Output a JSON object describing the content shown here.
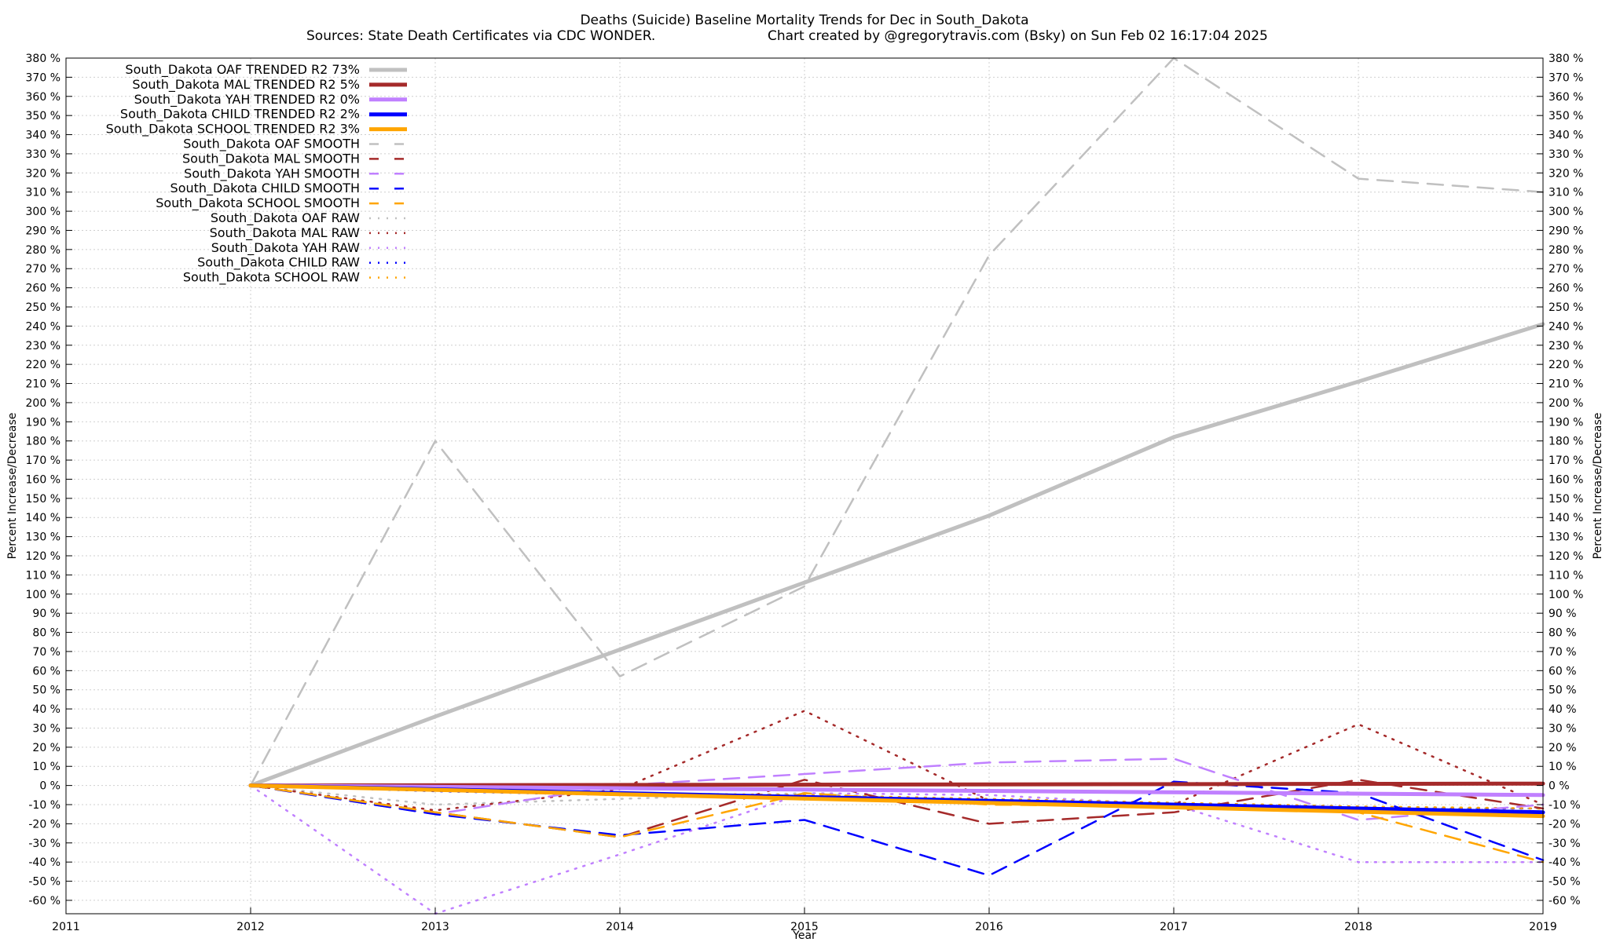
{
  "chart_data": {
    "type": "line",
    "title": "Deaths (Suicide)  Baseline Mortality Trends for Dec in South_Dakota",
    "subtitle_left": "Sources: State Death Certificates via CDC WONDER.",
    "subtitle_right": "Chart created by @gregorytravis.com (Bsky) on Sun Feb 02 16:17:04 2025",
    "xlabel": "Year",
    "ylabel": "Percent Increase/Decrease",
    "y2label": "Percent Increase/Decrease",
    "xlim": [
      2011,
      2019
    ],
    "ylim": [
      -67,
      380
    ],
    "x_ticks": [
      "2011",
      "2012",
      "2013",
      "2014",
      "2015",
      "2016",
      "2017",
      "2018",
      "2019"
    ],
    "y_ticks": [
      "380 %",
      "370 %",
      "360 %",
      "350 %",
      "340 %",
      "330 %",
      "320 %",
      "310 %",
      "300 %",
      "290 %",
      "280 %",
      "270 %",
      "260 %",
      "250 %",
      "240 %",
      "230 %",
      "220 %",
      "210 %",
      "200 %",
      "190 %",
      "180 %",
      "170 %",
      "160 %",
      "150 %",
      "140 %",
      "130 %",
      "120 %",
      "110 %",
      "100 %",
      "90 %",
      "80 %",
      "70 %",
      "60 %",
      "50 %",
      "40 %",
      "30 %",
      "20 %",
      "10 %",
      "0 %",
      "-10 %",
      "-20 %",
      "-30 %",
      "-40 %",
      "-50 %",
      "-60 %"
    ],
    "y_tick_values": [
      380,
      370,
      360,
      350,
      340,
      330,
      320,
      310,
      300,
      290,
      280,
      270,
      260,
      250,
      240,
      230,
      220,
      210,
      200,
      190,
      180,
      170,
      160,
      150,
      140,
      130,
      120,
      110,
      100,
      90,
      80,
      70,
      60,
      50,
      40,
      30,
      20,
      10,
      0,
      -10,
      -20,
      -30,
      -40,
      -50,
      -60
    ],
    "grid": true,
    "legend_position": "top-left",
    "series": [
      {
        "name": "South_Dakota OAF TRENDED R2  73%",
        "kind": "trended",
        "color": "#c0c0c0",
        "x": [
          2012,
          2013,
          2014,
          2015,
          2016,
          2017,
          2018,
          2019
        ],
        "y": [
          0,
          36,
          71,
          106,
          141,
          182,
          211,
          241
        ]
      },
      {
        "name": "South_Dakota MAL TRENDED R2   5%",
        "kind": "trended",
        "color": "#a52a2a",
        "x": [
          2012,
          2019
        ],
        "y": [
          0,
          1
        ]
      },
      {
        "name": "South_Dakota YAH TRENDED R2   0%",
        "kind": "trended",
        "color": "#c080ff",
        "x": [
          2012,
          2019
        ],
        "y": [
          0,
          -5
        ]
      },
      {
        "name": "South_Dakota CHILD TRENDED R2   2%",
        "kind": "trended",
        "color": "#0000ff",
        "x": [
          2012,
          2019
        ],
        "y": [
          0,
          -14
        ]
      },
      {
        "name": "South_Dakota SCHOOL TRENDED R2   3%",
        "kind": "trended",
        "color": "#ffa500",
        "x": [
          2012,
          2019
        ],
        "y": [
          0,
          -16
        ]
      },
      {
        "name": "South_Dakota OAF SMOOTH",
        "kind": "smooth",
        "color": "#c0c0c0",
        "x": [
          2012,
          2013,
          2014,
          2015,
          2016,
          2017,
          2018,
          2019
        ],
        "y": [
          0,
          180,
          57,
          104,
          277,
          380,
          317,
          310
        ]
      },
      {
        "name": "South_Dakota MAL SMOOTH",
        "kind": "smooth",
        "color": "#a52a2a",
        "x": [
          2012,
          2013,
          2014,
          2015,
          2016,
          2017,
          2018,
          2019
        ],
        "y": [
          0,
          -14,
          -27,
          3,
          -20,
          -14,
          3,
          -12
        ]
      },
      {
        "name": "South_Dakota YAH SMOOTH",
        "kind": "smooth",
        "color": "#c080ff",
        "x": [
          2012,
          2013,
          2014,
          2015,
          2016,
          2017,
          2018,
          2019
        ],
        "y": [
          0,
          -15,
          0,
          6,
          12,
          14,
          -18,
          -10
        ]
      },
      {
        "name": "South_Dakota CHILD SMOOTH",
        "kind": "smooth",
        "color": "#0000ff",
        "x": [
          2012,
          2013,
          2014,
          2015,
          2016,
          2017,
          2018,
          2019
        ],
        "y": [
          0,
          -15,
          -26,
          -18,
          -47,
          2,
          -4,
          -39
        ]
      },
      {
        "name": "South_Dakota SCHOOL SMOOTH",
        "kind": "smooth",
        "color": "#ffa500",
        "x": [
          2012,
          2013,
          2014,
          2015,
          2016,
          2017,
          2018,
          2019
        ],
        "y": [
          0,
          -14,
          -27,
          -4,
          -10,
          -11,
          -14,
          -40
        ]
      },
      {
        "name": "South_Dakota OAF RAW",
        "kind": "raw",
        "color": "#c0c0c0",
        "x": [
          2012,
          2013,
          2014,
          2015,
          2016,
          2017,
          2018,
          2019
        ],
        "y": [
          0,
          -10,
          -7,
          -4,
          -9,
          -11,
          -12,
          -12
        ]
      },
      {
        "name": "South_Dakota MAL RAW",
        "kind": "raw",
        "color": "#a52a2a",
        "x": [
          2012,
          2013,
          2014,
          2015,
          2016,
          2017,
          2018,
          2019
        ],
        "y": [
          0,
          -13,
          -2,
          39,
          -8,
          -10,
          32,
          -10
        ]
      },
      {
        "name": "South_Dakota YAH RAW",
        "kind": "raw",
        "color": "#c080ff",
        "x": [
          2012,
          2013,
          2014,
          2015,
          2016,
          2017,
          2018,
          2019
        ],
        "y": [
          0,
          -67,
          -36,
          -4,
          -5,
          -10,
          -40,
          -40
        ]
      },
      {
        "name": "South_Dakota CHILD RAW",
        "kind": "raw",
        "color": "#0000ff",
        "x": [
          2012,
          2013,
          2014,
          2015,
          2016,
          2017,
          2018,
          2019
        ],
        "y": [
          0,
          -3,
          -5,
          -6,
          -8,
          -10,
          -12,
          -12
        ]
      },
      {
        "name": "South_Dakota SCHOOL RAW",
        "kind": "raw",
        "color": "#ffa500",
        "x": [
          2012,
          2013,
          2014,
          2015,
          2016,
          2017,
          2018,
          2019
        ],
        "y": [
          0,
          -2,
          -4,
          -5,
          -7,
          -9,
          -11,
          -12
        ]
      }
    ]
  }
}
